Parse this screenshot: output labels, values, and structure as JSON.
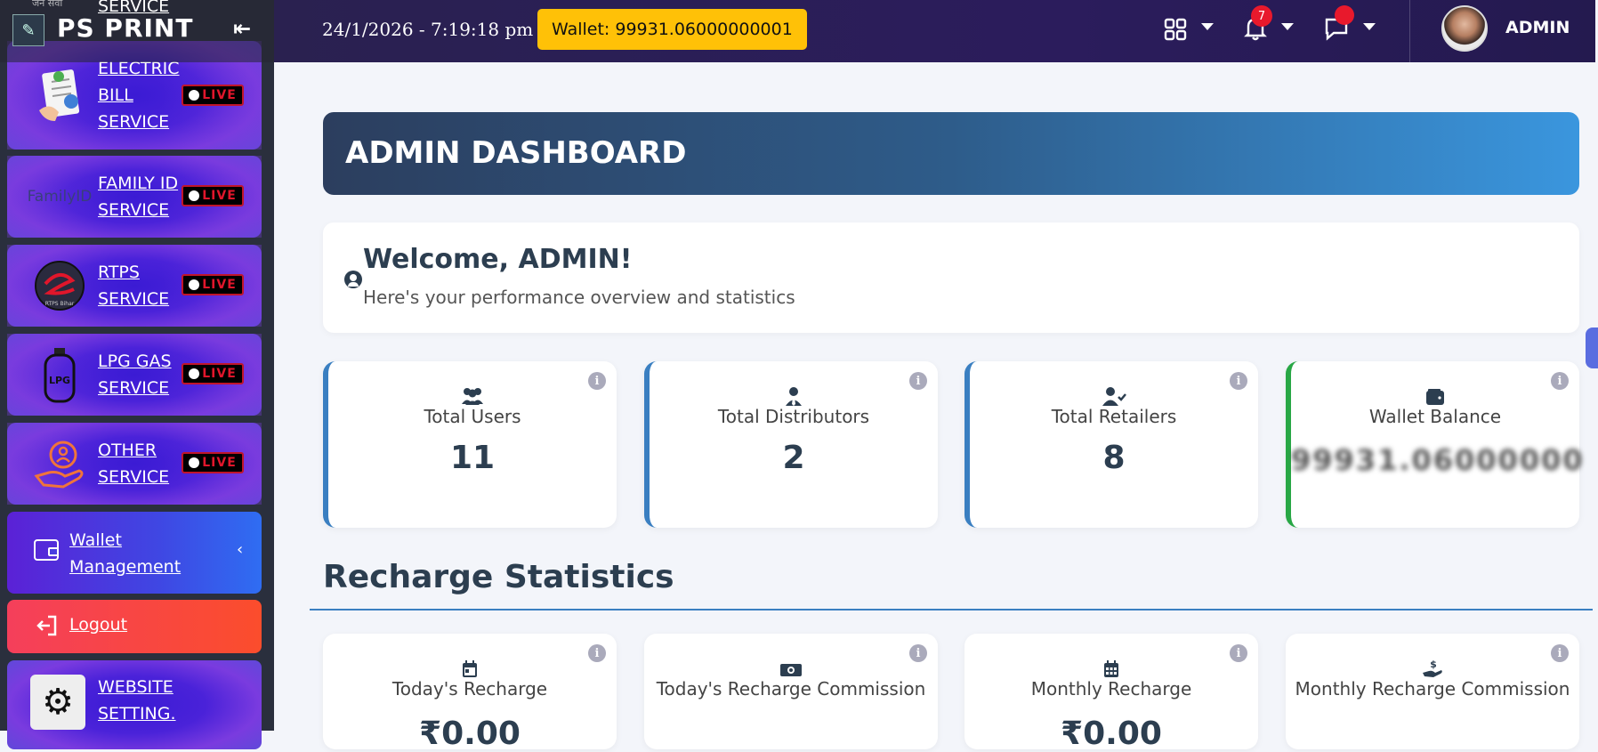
{
  "sidebar": {
    "brand": "PS PRINT",
    "partial_top_text": "जन सेवा",
    "partial_service": "SERVICE",
    "services": [
      {
        "label_lines": [
          "ELECTRIC",
          "BILL",
          "SERVICE"
        ],
        "icon": "electric-bill-icon",
        "live": "LIVE"
      },
      {
        "label_lines": [
          "FAMILY ID",
          "SERVICE"
        ],
        "icon": "family-id-logo",
        "logo_text": "FamilyID",
        "live": "LIVE"
      },
      {
        "label_lines": [
          "RTPS",
          "SERVICE"
        ],
        "icon": "rtps-logo",
        "logo_text": "RTPS Bihar",
        "live": "LIVE"
      },
      {
        "label_lines": [
          "LPG GAS",
          "SERVICE"
        ],
        "icon": "lpg-cylinder-icon",
        "logo_text": "LPG",
        "live": "LIVE"
      },
      {
        "label_lines": [
          "OTHER",
          "SERVICE"
        ],
        "icon": "hand-user-icon",
        "live": "LIVE"
      }
    ],
    "wallet_management": {
      "line1": "Wallet",
      "line2": "Management"
    },
    "logout": "Logout",
    "website_setting": {
      "line1": "WEBSITE",
      "line2": "SETTING."
    }
  },
  "topbar": {
    "datetime": "24/1/2026 - 7:19:18 pm",
    "wallet": "Wallet: 99931.06000000001",
    "notification_count": "7",
    "admin_name": "ADMIN"
  },
  "header": {
    "title": "ADMIN DASHBOARD"
  },
  "welcome": {
    "title": "Welcome, ADMIN!",
    "subtitle": "Here's your performance overview and statistics"
  },
  "stats": [
    {
      "label": "Total Users",
      "value": "11",
      "icon": "users-icon"
    },
    {
      "label": "Total Distributors",
      "value": "2",
      "icon": "user-tie-icon"
    },
    {
      "label": "Total Retailers",
      "value": "8",
      "icon": "user-check-icon"
    },
    {
      "label": "Wallet Balance",
      "value": "99931.06000000",
      "icon": "wallet-icon"
    }
  ],
  "recharge": {
    "section_title": "Recharge Statistics",
    "cards": [
      {
        "label": "Today's Recharge",
        "value": "₹0.00",
        "icon": "calendar-day-icon"
      },
      {
        "label": "Today's Recharge Commission",
        "value": "",
        "icon": "money-bill-icon"
      },
      {
        "label": "Monthly Recharge",
        "value": "₹0.00",
        "icon": "calendar-icon"
      },
      {
        "label": "Monthly Recharge Commission",
        "value": "",
        "icon": "hand-coin-icon"
      }
    ]
  },
  "colors": {
    "accent_blue": "#3a7fc1",
    "wallet_yellow": "#ffc107",
    "logout_red": "#f53f5b",
    "live_red": "#e0162b",
    "green": "#28a745"
  }
}
